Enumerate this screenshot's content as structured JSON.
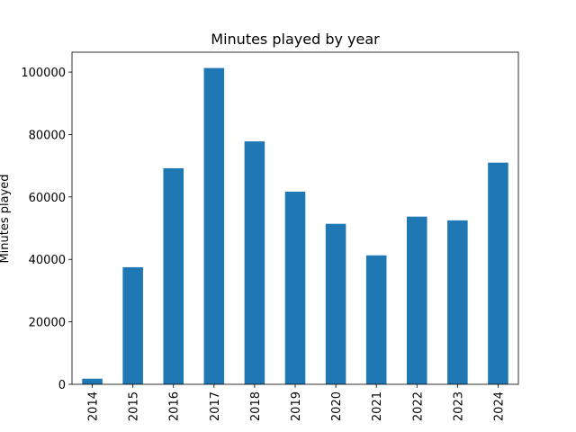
{
  "chart_data": {
    "type": "bar",
    "title": "Minutes played by year",
    "xlabel": "",
    "ylabel": "Minutes played",
    "categories": [
      "2014",
      "2015",
      "2016",
      "2017",
      "2018",
      "2019",
      "2020",
      "2021",
      "2022",
      "2023",
      "2024"
    ],
    "values": [
      1800,
      37500,
      69200,
      101300,
      77800,
      61700,
      51400,
      41300,
      53700,
      52500,
      71000
    ],
    "ylim": [
      0,
      106365
    ],
    "yticks": [
      0,
      20000,
      40000,
      60000,
      80000,
      100000
    ],
    "ytick_labels": [
      "0",
      "20000",
      "40000",
      "60000",
      "80000",
      "100000"
    ],
    "bar_color": "#1f77b4",
    "grid": false,
    "legend": "none"
  }
}
